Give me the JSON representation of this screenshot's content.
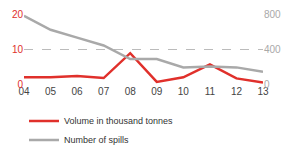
{
  "chart_data": {
    "type": "line",
    "categories": [
      "04",
      "05",
      "06",
      "07",
      "08",
      "09",
      "10",
      "11",
      "12",
      "13"
    ],
    "series": [
      {
        "name": "Volume in thousand tonnes",
        "color": "#e0302b",
        "axis": "y",
        "values": [
          1.9,
          1.9,
          2.3,
          1.7,
          8.8,
          0.6,
          1.9,
          5.6,
          1.6,
          0.4
        ]
      },
      {
        "name": "Number of spills",
        "color": "#a9a9a9",
        "axis": "y2",
        "values": [
          780,
          620,
          530,
          440,
          285,
          285,
          190,
          200,
          190,
          140
        ]
      }
    ],
    "ylim": [
      0,
      20
    ],
    "yticks": [
      0,
      10,
      20
    ],
    "y2lim": [
      0,
      800
    ],
    "y2ticks": [
      0,
      400,
      800
    ],
    "grid": true,
    "legend": "bottom"
  }
}
